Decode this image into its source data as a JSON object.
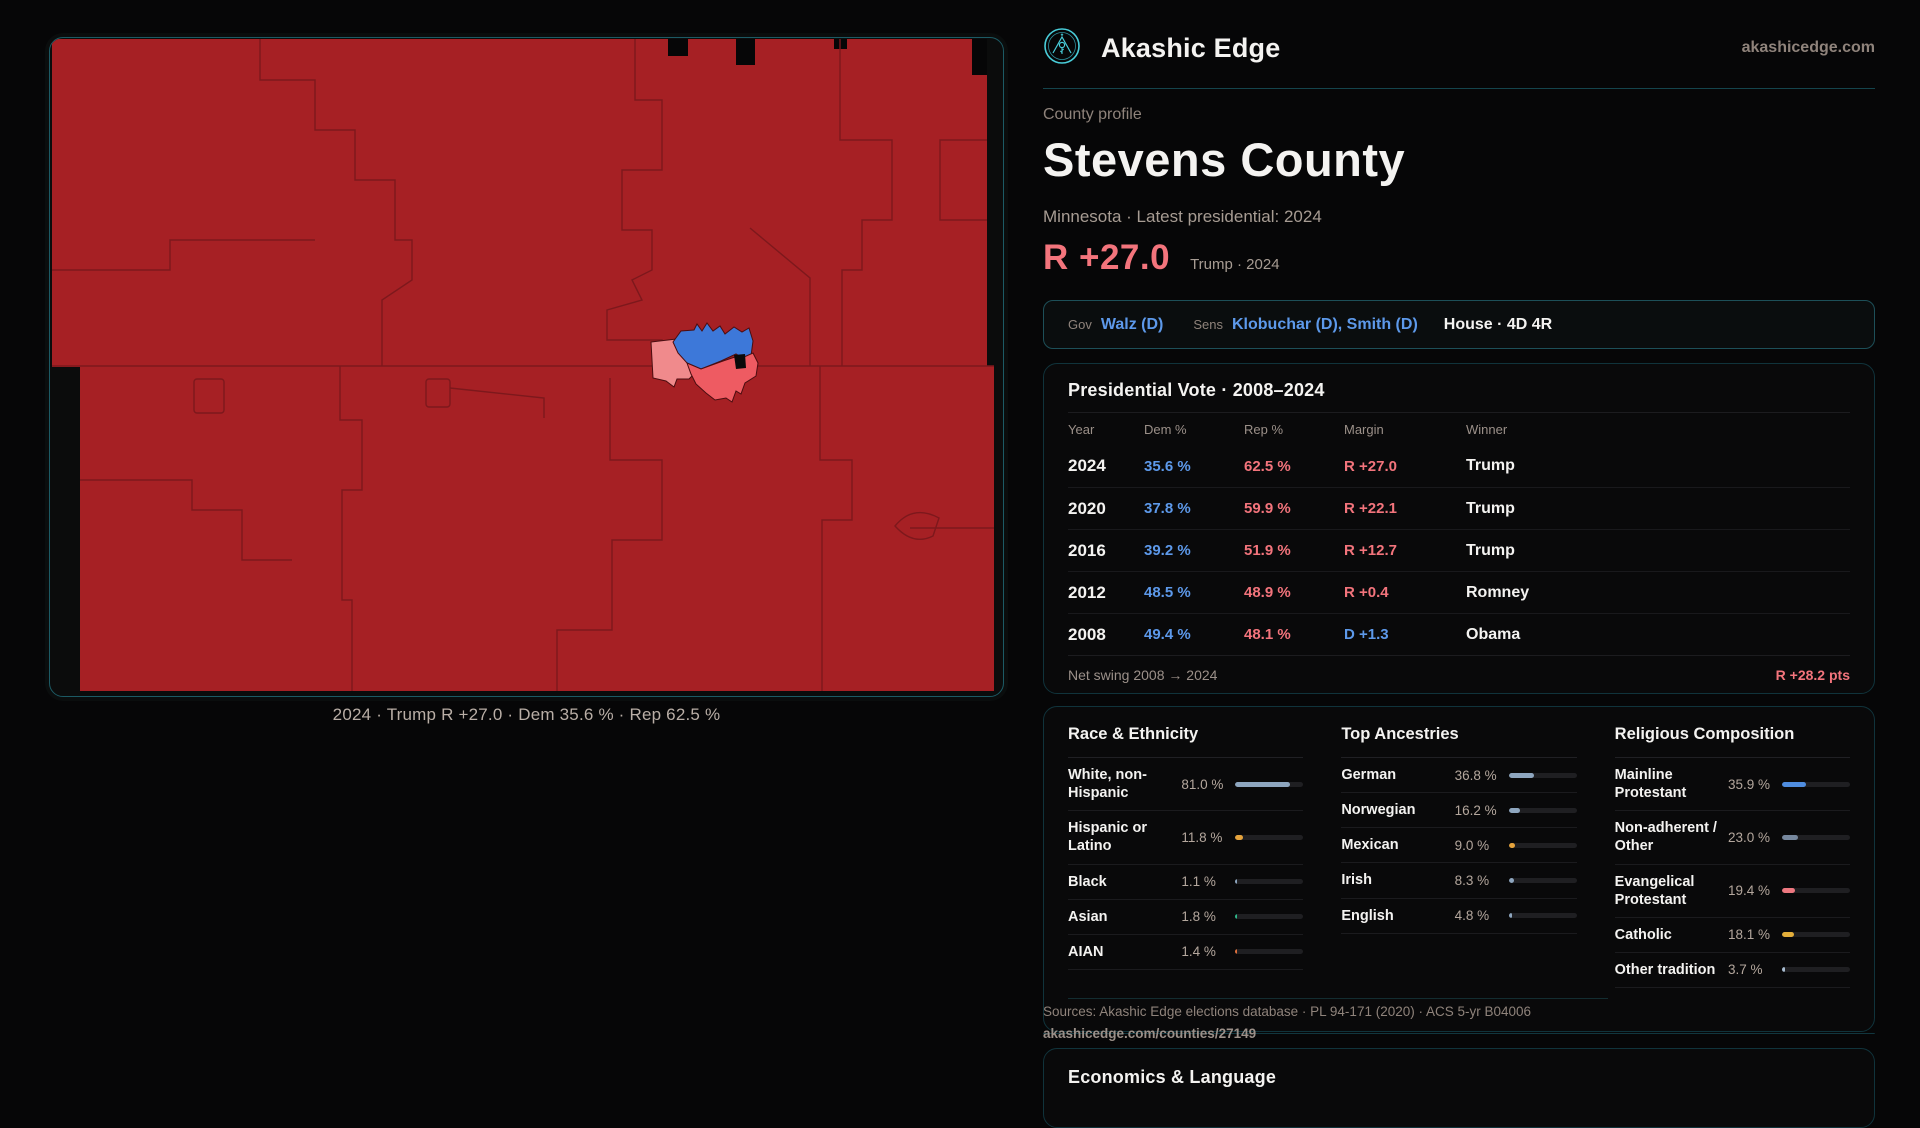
{
  "brand": {
    "name": "Akashic Edge",
    "domain": "akashicedge.com",
    "logo_icon": "akashic-emblem-icon"
  },
  "map": {
    "caption": "2024 · Trump R +27.0 · Dem 35.6 % · Rep 62.5 %"
  },
  "profile": {
    "eyebrow": "County profile",
    "title": "Stevens County",
    "subtitle": "Minnesota · Latest presidential: 2024",
    "headline_margin": "R +27.0",
    "headline_context": "Trump · 2024"
  },
  "officials": {
    "gov_label": "Gov",
    "gov": "Walz (D)",
    "sens_label": "Sens",
    "sens": "Klobuchar (D), Smith (D)",
    "house": "House · 4D 4R"
  },
  "presidential_vote": {
    "title": "Presidential Vote · 2008–2024",
    "columns": [
      "Year",
      "Dem %",
      "Rep %",
      "Margin",
      "Winner"
    ],
    "rows": [
      {
        "year": "2024",
        "dem": "35.6 %",
        "rep": "62.5 %",
        "margin": "R +27.0",
        "margin_party": "R",
        "winner": "Trump"
      },
      {
        "year": "2020",
        "dem": "37.8 %",
        "rep": "59.9 %",
        "margin": "R +22.1",
        "margin_party": "R",
        "winner": "Trump"
      },
      {
        "year": "2016",
        "dem": "39.2 %",
        "rep": "51.9 %",
        "margin": "R +12.7",
        "margin_party": "R",
        "winner": "Trump"
      },
      {
        "year": "2012",
        "dem": "48.5 %",
        "rep": "48.9 %",
        "margin": "R +0.4",
        "margin_party": "R",
        "winner": "Romney"
      },
      {
        "year": "2008",
        "dem": "49.4 %",
        "rep": "48.1 %",
        "margin": "D +1.3",
        "margin_party": "D",
        "winner": "Obama"
      }
    ],
    "net_swing_label": "Net swing 2008 → 2024",
    "net_swing_value": "R +28.2 pts"
  },
  "demographics": {
    "sections": [
      {
        "key": "race",
        "title": "Race & Ethnicity",
        "rows": [
          {
            "label": "White, non-Hispanic",
            "value": "81.0 %",
            "pct": 81.0,
            "color": "#8ea6bf"
          },
          {
            "label": "Hispanic or Latino",
            "value": "11.8 %",
            "pct": 11.8,
            "color": "#e5a33c"
          },
          {
            "label": "Black",
            "value": "1.1 %",
            "pct": 1.1,
            "color": "#8ea6bf"
          },
          {
            "label": "Asian",
            "value": "1.8 %",
            "pct": 1.8,
            "color": "#2fb88a"
          },
          {
            "label": "AIAN",
            "value": "1.4 %",
            "pct": 1.4,
            "color": "#e0703c"
          }
        ]
      },
      {
        "key": "ancestries",
        "title": "Top Ancestries",
        "rows": [
          {
            "label": "German",
            "value": "36.8 %",
            "pct": 36.8,
            "color": "#8ea6bf"
          },
          {
            "label": "Norwegian",
            "value": "16.2 %",
            "pct": 16.2,
            "color": "#8ea6bf"
          },
          {
            "label": "Mexican",
            "value": "9.0 %",
            "pct": 9.0,
            "color": "#e5a33c"
          },
          {
            "label": "Irish",
            "value": "8.3 %",
            "pct": 8.3,
            "color": "#8ea6bf"
          },
          {
            "label": "English",
            "value": "4.8 %",
            "pct": 4.8,
            "color": "#8ea6bf"
          }
        ]
      },
      {
        "key": "religion",
        "title": "Religious Composition",
        "rows": [
          {
            "label": "Mainline Protestant",
            "value": "35.9 %",
            "pct": 35.9,
            "color": "#4f8de0"
          },
          {
            "label": "Non-adherent / Other",
            "value": "23.0 %",
            "pct": 23.0,
            "color": "#76879d"
          },
          {
            "label": "Evangelical Protestant",
            "value": "19.4 %",
            "pct": 19.4,
            "color": "#ed7880"
          },
          {
            "label": "Catholic",
            "value": "18.1 %",
            "pct": 18.1,
            "color": "#e3ae3a"
          },
          {
            "label": "Other tradition",
            "value": "3.7 %",
            "pct": 3.7,
            "color": "#a8bcd0"
          }
        ]
      }
    ]
  },
  "footer": {
    "sources": "Sources: Akashic Edge elections database · PL 94-171 (2020) · ACS 5-yr B04006",
    "permalink": "akashicedge.com/counties/27149"
  },
  "economics": {
    "title": "Economics & Language"
  },
  "colors": {
    "dem_blue": "#5d99ea",
    "rep_salmon": "#f3747c",
    "map_red": "#a62024",
    "precinct_blue": "#3d78d9",
    "precinct_pink": "#f08a8c",
    "precinct_red": "#ee5b62",
    "teal_border": "#1c5a64",
    "accent_teal": "#49cdd9"
  }
}
